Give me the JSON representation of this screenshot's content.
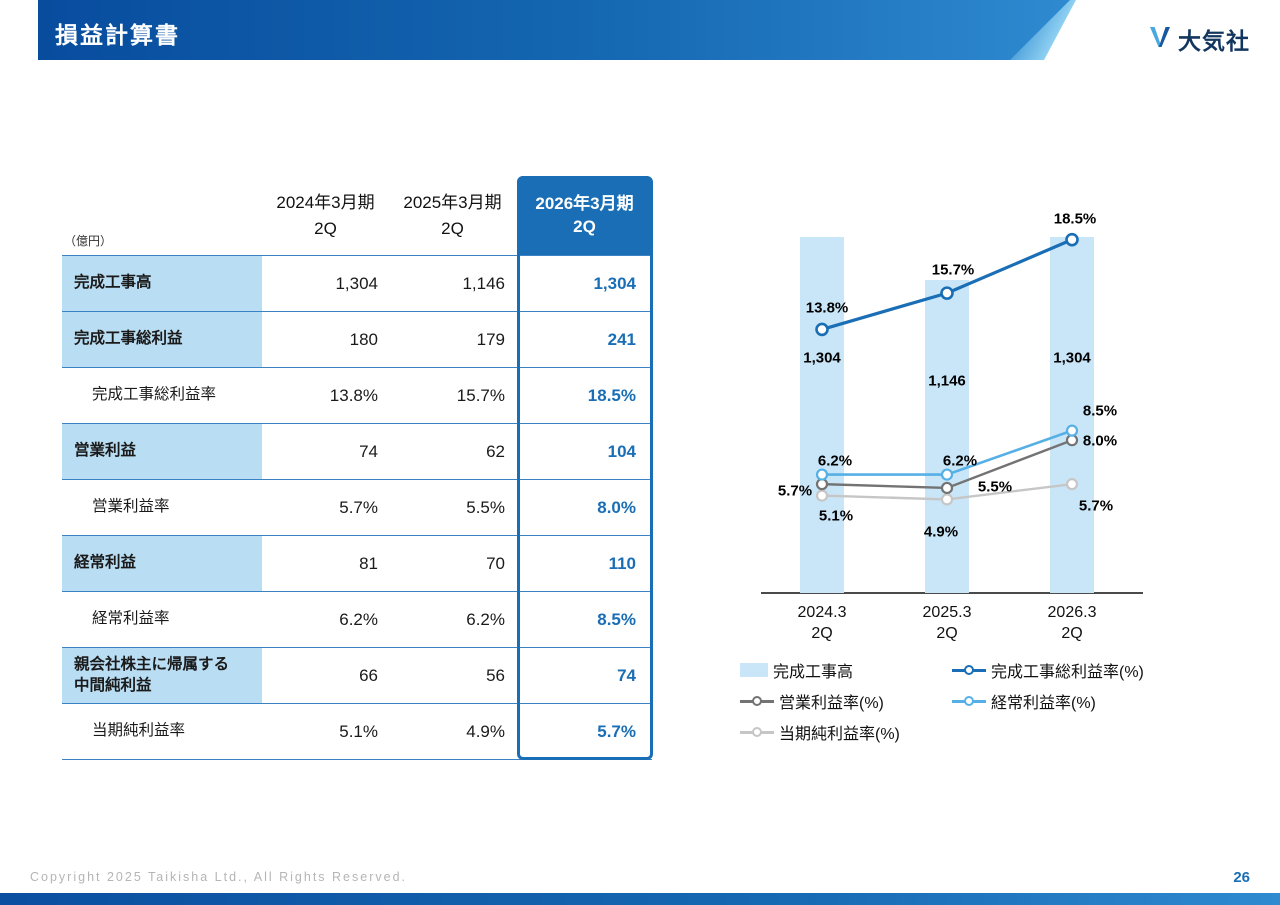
{
  "header": {
    "title": "損益計算書",
    "logo_text": "大気社",
    "bar_color_start": "#084c9e",
    "bar_color_end": "#2f8ad0"
  },
  "table": {
    "unit_label": "（億円）",
    "columns": [
      "2024年3月期\n2Q",
      "2025年3月期\n2Q",
      "2026年3月期\n2Q"
    ],
    "highlight_color": "#1a6eb5",
    "label_bg_color": "#b9ddf3",
    "rows": [
      {
        "label": "完成工事高",
        "values": [
          "1,304",
          "1,146",
          "1,304"
        ],
        "emphasis": true
      },
      {
        "label": "完成工事総利益",
        "values": [
          "180",
          "179",
          "241"
        ],
        "emphasis": true
      },
      {
        "label": "完成工事総利益率",
        "values": [
          "13.8%",
          "15.7%",
          "18.5%"
        ],
        "emphasis": false
      },
      {
        "label": "営業利益",
        "values": [
          "74",
          "62",
          "104"
        ],
        "emphasis": true
      },
      {
        "label": "営業利益率",
        "values": [
          "5.7%",
          "5.5%",
          "8.0%"
        ],
        "emphasis": false
      },
      {
        "label": "経常利益",
        "values": [
          "81",
          "70",
          "110"
        ],
        "emphasis": true
      },
      {
        "label": "経常利益率",
        "values": [
          "6.2%",
          "6.2%",
          "8.5%"
        ],
        "emphasis": false
      },
      {
        "label": "親会社株主に帰属する\n中間純利益",
        "values": [
          "66",
          "56",
          "74"
        ],
        "emphasis": true
      },
      {
        "label": "当期純利益率",
        "values": [
          "5.1%",
          "4.9%",
          "5.7%"
        ],
        "emphasis": false
      }
    ]
  },
  "chart_data": {
    "type": "bar",
    "subtype": "bar+line combo",
    "categories": [
      "2024.3\n2Q",
      "2025.3\n2Q",
      "2026.3\n2Q"
    ],
    "bar_series": {
      "name": "完成工事高",
      "values": [
        1304,
        1146,
        1304
      ],
      "labels": [
        "1,304",
        "1,146",
        "1,304"
      ],
      "color": "#c9e6f8"
    },
    "line_series": [
      {
        "name": "完成工事総利益率(%)",
        "values": [
          13.8,
          15.7,
          18.5
        ],
        "labels": [
          "13.8%",
          "15.7%",
          "18.5%"
        ],
        "color": "#1a6eb5"
      },
      {
        "name": "営業利益率(%)",
        "values": [
          5.7,
          5.5,
          8.0
        ],
        "labels": [
          "5.7%",
          "5.5%",
          "8.0%"
        ],
        "color": "#737373"
      },
      {
        "name": "経常利益率(%)",
        "values": [
          6.2,
          6.2,
          8.5
        ],
        "labels": [
          "6.2%",
          "6.2%",
          "8.5%"
        ],
        "color": "#56b0e6"
      },
      {
        "name": "当期純利益率(%)",
        "values": [
          5.1,
          4.9,
          5.7
        ],
        "labels": [
          "5.1%",
          "4.9%",
          "5.7%"
        ],
        "color": "#c6c6c6"
      }
    ],
    "bar_axis_range": [
      0,
      1450
    ],
    "pct_axis_range": [
      0,
      22
    ],
    "grid": false,
    "legend_position": "bottom"
  },
  "footer": {
    "copyright": "Copyright  2025 Taikisha Ltd., All Rights Reserved.",
    "page_number": "26"
  }
}
